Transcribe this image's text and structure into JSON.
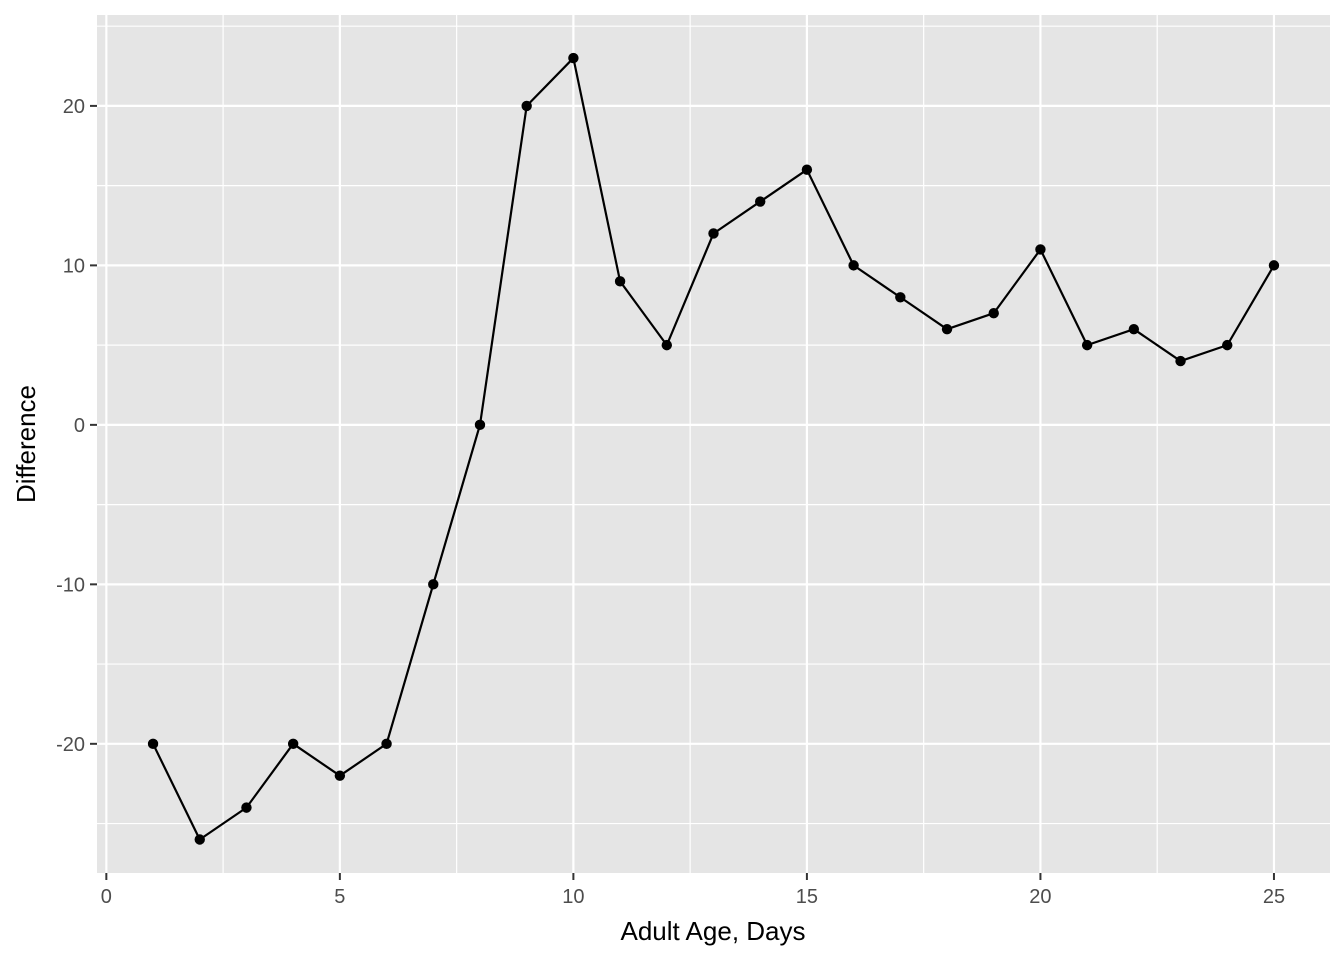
{
  "chart_data": {
    "type": "line",
    "markers": true,
    "title": "",
    "xlabel": "Adult Age, Days",
    "ylabel": "Difference",
    "xlim": [
      -0.2,
      26.2
    ],
    "ylim": [
      -28.1,
      25.7
    ],
    "x_ticks": [
      0,
      5,
      10,
      15,
      20,
      25
    ],
    "x_tick_labels": [
      "0",
      "5",
      "10",
      "15",
      "20",
      "25"
    ],
    "y_ticks": [
      -20,
      -10,
      0,
      10,
      20
    ],
    "y_tick_labels": [
      "-20",
      "-10",
      "0",
      "10",
      "20"
    ],
    "grid": true,
    "colors": {
      "panel": "#e5e5e5",
      "grid": "#ffffff",
      "series": "#000000",
      "tick_text": "#4d4d4d",
      "tick_mark": "#333333"
    },
    "series": [
      {
        "x": [
          1,
          2,
          3,
          4,
          5,
          6,
          7,
          8,
          9,
          10,
          11,
          12,
          13,
          14,
          15,
          16,
          17,
          18,
          19,
          20,
          21,
          22,
          23,
          24,
          25
        ],
        "y": [
          -20,
          -26,
          -24,
          -20,
          -22,
          -20,
          -10,
          0,
          20,
          23,
          9,
          5,
          12,
          14,
          16,
          10,
          8,
          6,
          7,
          11,
          5,
          6,
          4,
          5,
          10
        ]
      }
    ]
  }
}
